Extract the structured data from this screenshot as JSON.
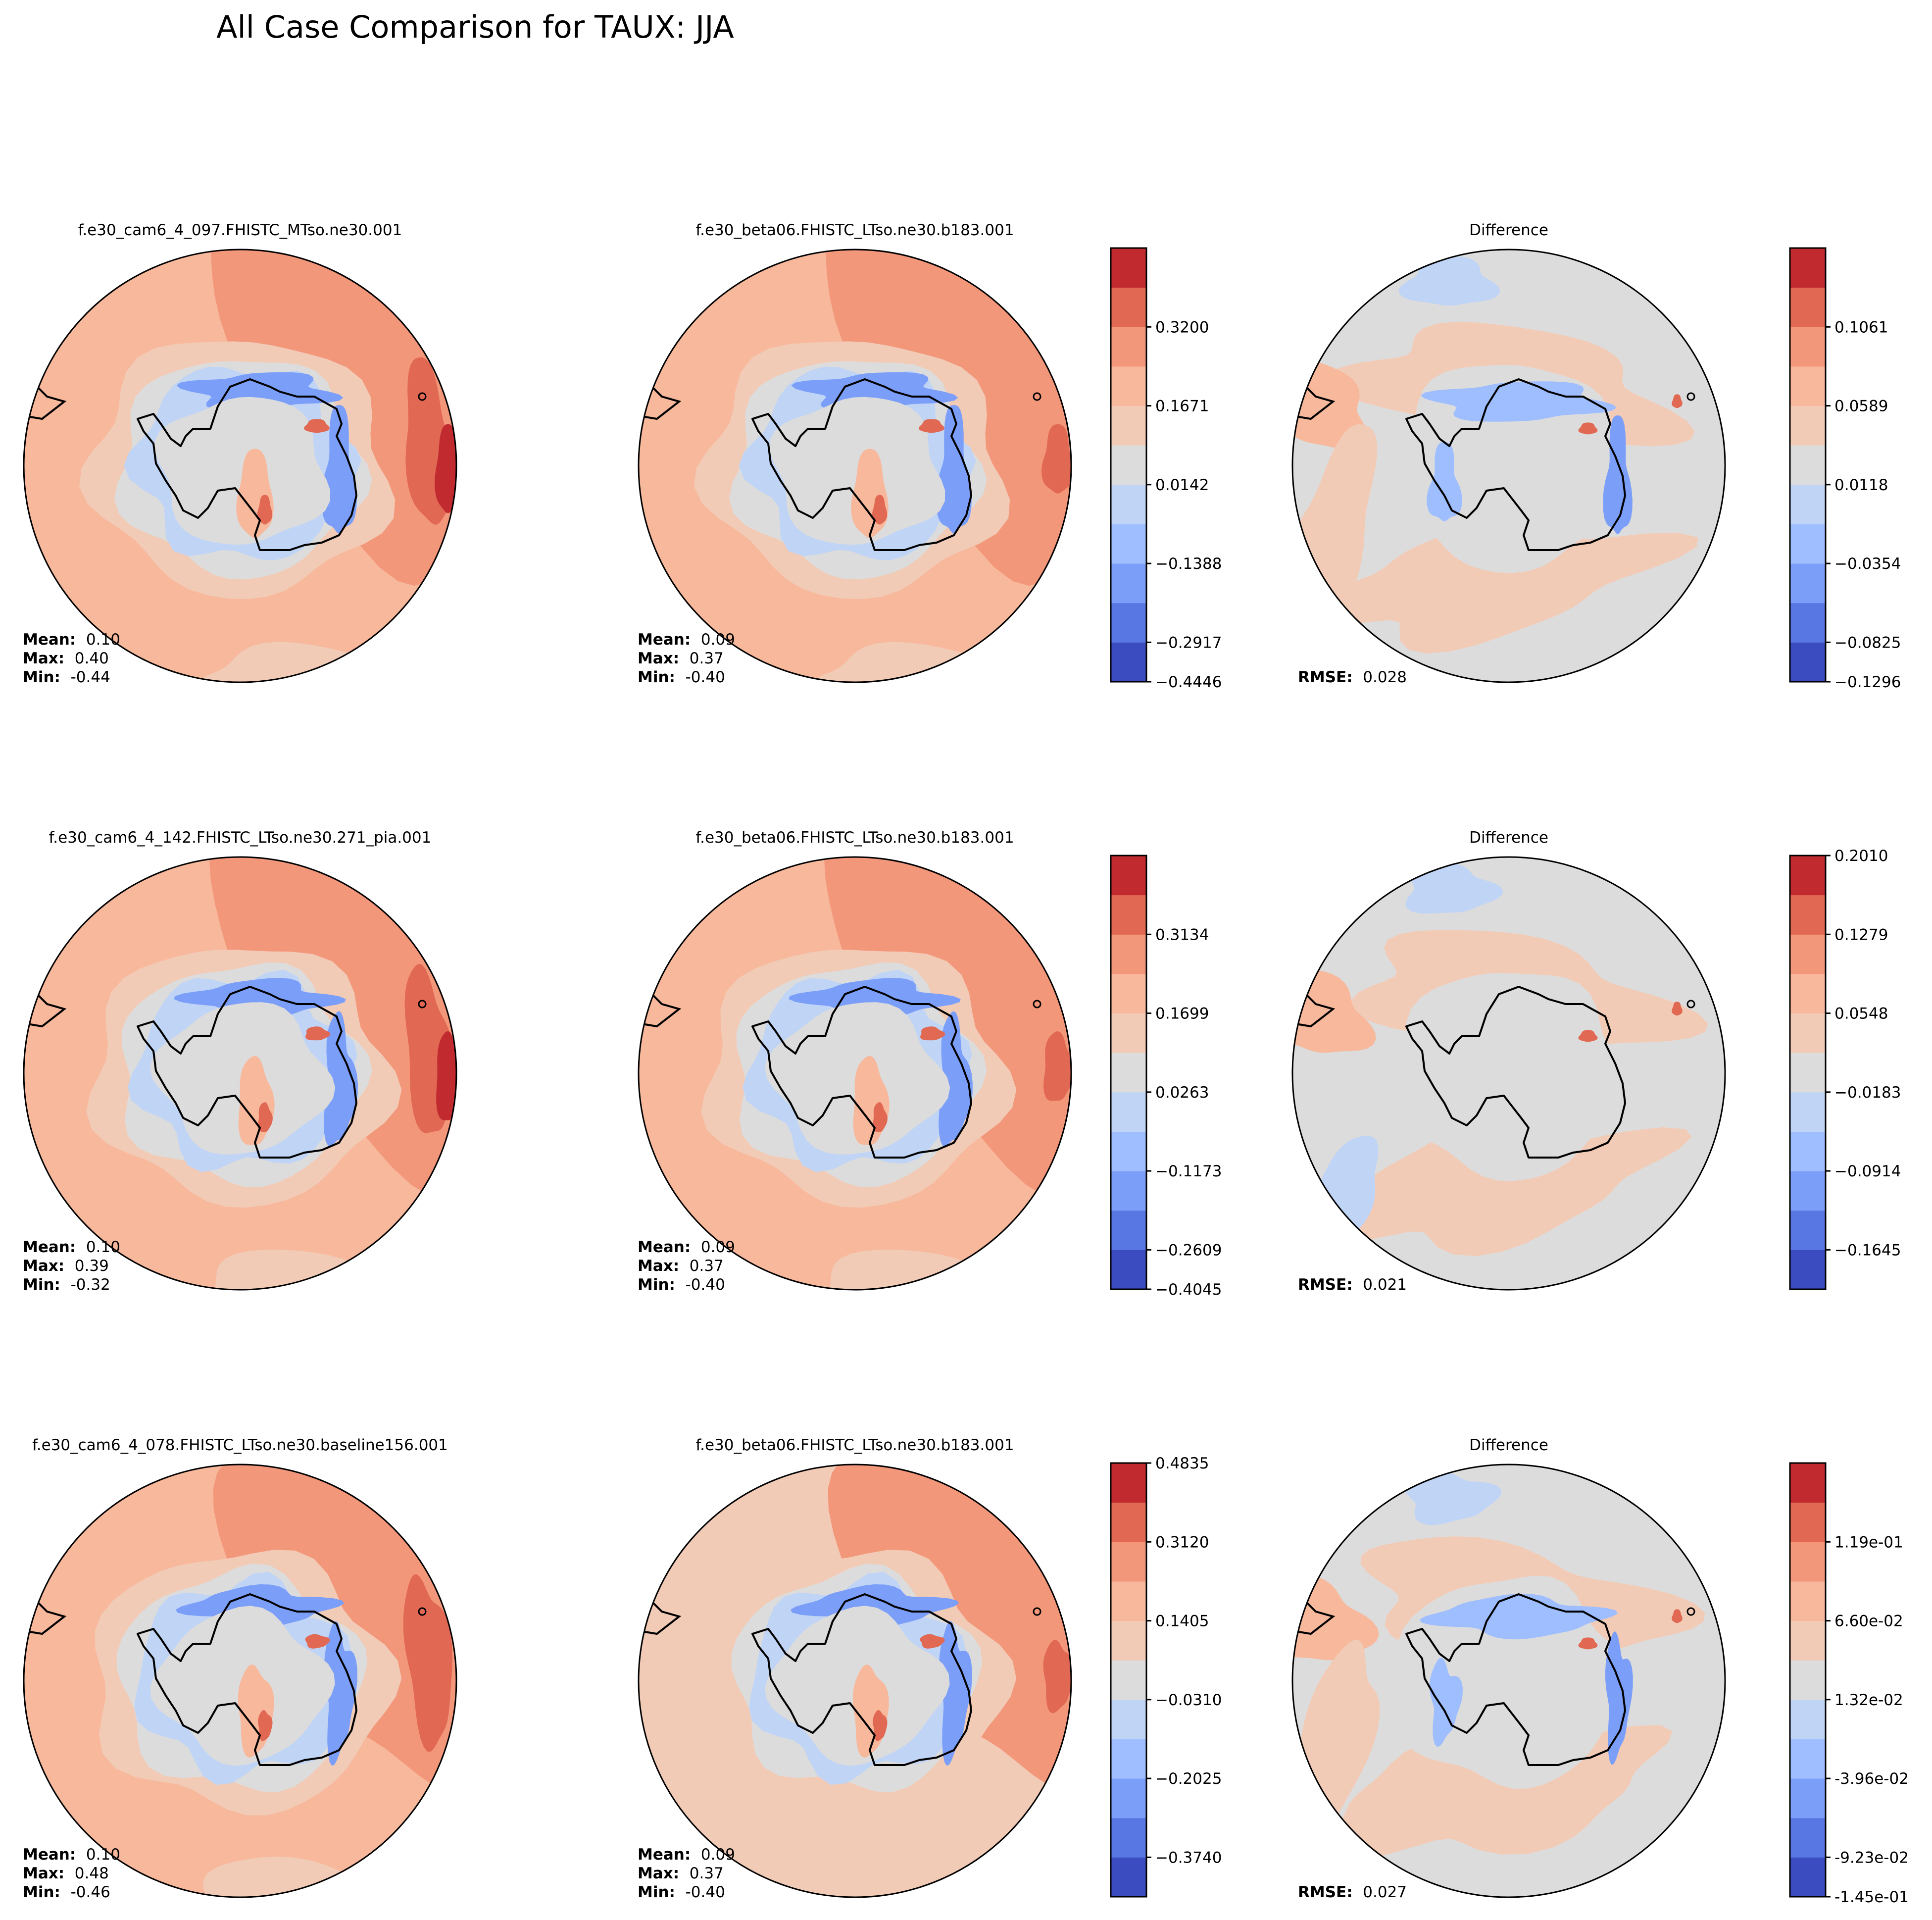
{
  "chart_data": {
    "type": "contour-map-grid",
    "title": "All Case Comparison for TAUX: JJA",
    "colors": {
      "c0": "#3b4cc0",
      "c1": "#5977e3",
      "c2": "#7b9ff9",
      "c3": "#9ebeff",
      "c4": "#c0d4f5",
      "c5": "#dddcdc",
      "c6": "#f2cbb7",
      "c7": "#f7b89c",
      "c8": "#f3977b",
      "c9": "#e16852",
      "c10": "#c12b30",
      "coast": "#000000"
    },
    "rows": [
      {
        "test": {
          "title": "f.e30_cam6_4_097.FHISTC_MTso.ne30.001",
          "mean_label": "Mean:",
          "mean": "0.10",
          "max_label": "Max:",
          "max": "0.40",
          "min_label": "Min:",
          "min": "-0.44"
        },
        "base": {
          "title": "f.e30_beta06.FHISTC_LTso.ne30.b183.001",
          "mean_label": "Mean:",
          "mean": "0.09",
          "max_label": "Max:",
          "max": "0.37",
          "min_label": "Min:",
          "min": "-0.40"
        },
        "colorbar": {
          "ticks": [
            "0.3200",
            "0.1671",
            "0.0142",
            "−0.1388",
            "−0.2917",
            "−0.4446"
          ],
          "tick_levels": [
            9,
            7,
            5,
            3,
            1,
            0
          ]
        },
        "diff": {
          "title": "Difference",
          "rmse_label": "RMSE:",
          "rmse": "0.028"
        },
        "diff_colorbar": {
          "ticks": [
            "0.1061",
            "0.0589",
            "0.0118",
            "−0.0354",
            "−0.0825",
            "−0.1296"
          ],
          "tick_levels": [
            9,
            7,
            5,
            3,
            1,
            0
          ]
        }
      },
      {
        "test": {
          "title": "f.e30_cam6_4_142.FHISTC_LTso.ne30.271_pia.001",
          "mean_label": "Mean:",
          "mean": "0.10",
          "max_label": "Max:",
          "max": "0.39",
          "min_label": "Min:",
          "min": "-0.32"
        },
        "base": {
          "title": "f.e30_beta06.FHISTC_LTso.ne30.b183.001",
          "mean_label": "Mean:",
          "mean": "0.09",
          "max_label": "Max:",
          "max": "0.37",
          "min_label": "Min:",
          "min": "-0.40"
        },
        "colorbar": {
          "ticks": [
            "0.3134",
            "0.1699",
            "0.0263",
            "−0.1173",
            "−0.2609",
            "−0.4045"
          ],
          "tick_levels": [
            9,
            7,
            5,
            3,
            1,
            0
          ]
        },
        "diff": {
          "title": "Difference",
          "rmse_label": "RMSE:",
          "rmse": "0.021"
        },
        "diff_colorbar": {
          "ticks": [
            "0.2010",
            "0.1279",
            "0.0548",
            "−0.0183",
            "−0.0914",
            "−0.1645"
          ],
          "tick_levels": [
            11,
            9,
            7,
            5,
            3,
            1
          ]
        }
      },
      {
        "test": {
          "title": "f.e30_cam6_4_078.FHISTC_LTso.ne30.baseline156.001",
          "mean_label": "Mean:",
          "mean": "0.10",
          "max_label": "Max:",
          "max": "0.48",
          "min_label": "Min:",
          "min": "-0.46"
        },
        "base": {
          "title": "f.e30_beta06.FHISTC_LTso.ne30.b183.001",
          "mean_label": "Mean:",
          "mean": "0.09",
          "max_label": "Max:",
          "max": "0.37",
          "min_label": "Min:",
          "min": "-0.40"
        },
        "colorbar": {
          "ticks": [
            "0.4835",
            "0.3120",
            "0.1405",
            "−0.0310",
            "−0.2025",
            "−0.3740"
          ],
          "tick_levels": [
            11,
            9,
            7,
            5,
            3,
            1
          ]
        },
        "diff": {
          "title": "Difference",
          "rmse_label": "RMSE:",
          "rmse": "0.027"
        },
        "diff_colorbar": {
          "ticks": [
            "1.19e-01",
            "6.60e-02",
            "1.32e-02",
            "-3.96e-02",
            "-9.23e-02",
            "-1.45e-01"
          ],
          "tick_levels": [
            9,
            7,
            5,
            3,
            1,
            0
          ]
        }
      }
    ]
  }
}
